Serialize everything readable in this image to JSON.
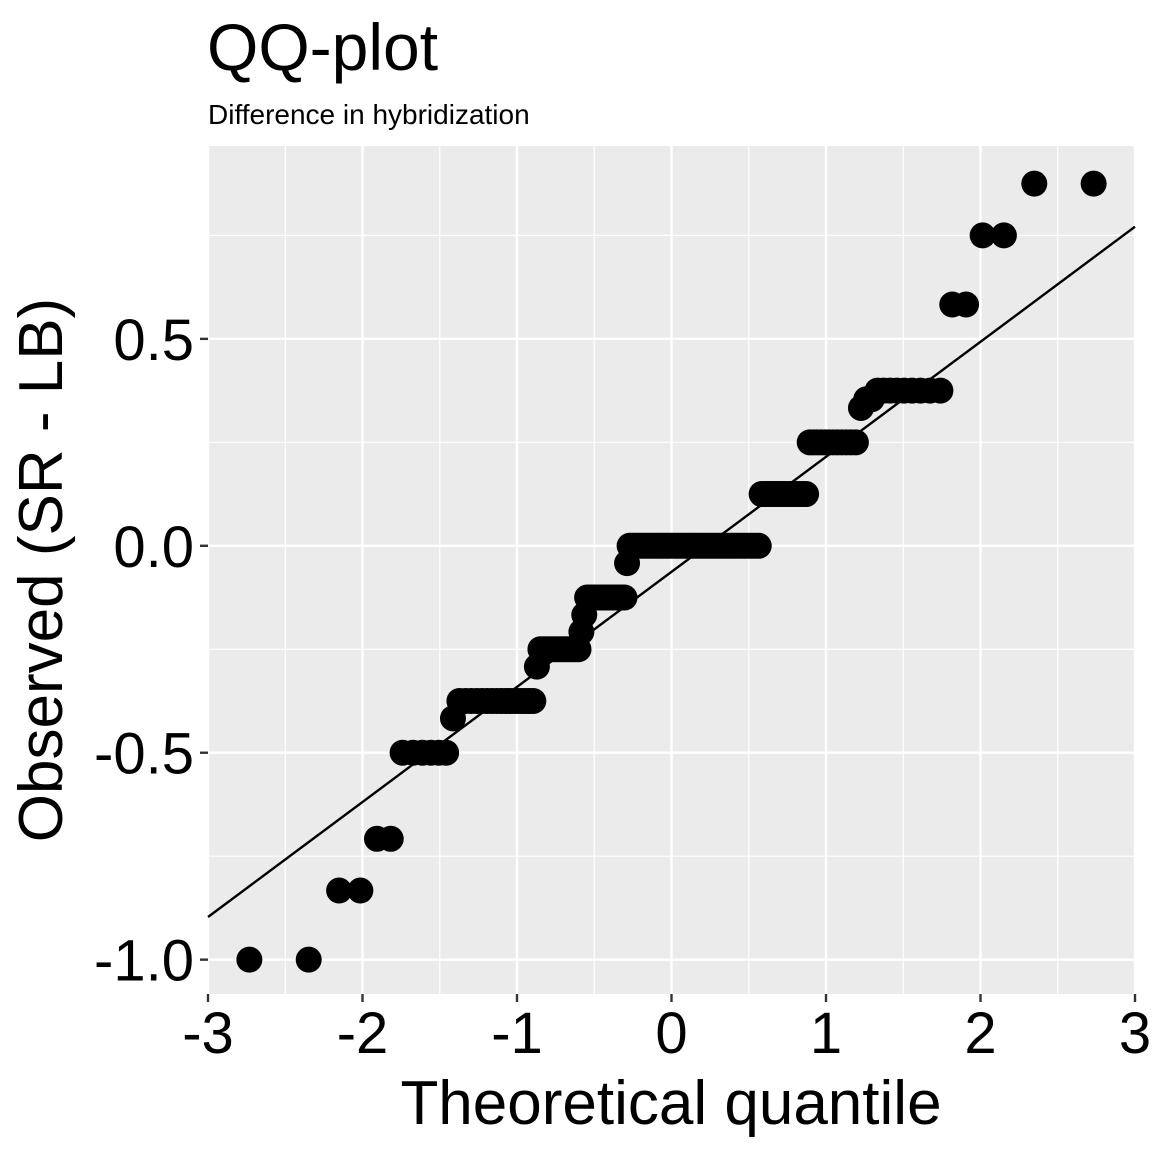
{
  "chart_data": {
    "type": "scatter",
    "title": "QQ-plot",
    "subtitle": "Difference in hybridization",
    "xlabel": "Theoretical quantile",
    "ylabel": "Observed (SR - LB)",
    "xlim": [
      -3,
      3
    ],
    "ylim": [
      -1.083,
      0.966
    ],
    "x_ticks": [
      -3,
      -2,
      -1,
      0,
      1,
      2,
      3
    ],
    "x_tick_labels": [
      "-3",
      "-2",
      "-1",
      "0",
      "1",
      "2",
      "3"
    ],
    "y_ticks": [
      -1.0,
      -0.5,
      0.0,
      0.5
    ],
    "y_tick_labels": [
      "-1.0",
      "-0.5",
      "0.0",
      "0.5"
    ],
    "grid": true,
    "background": "#EBEBEB",
    "point_color": "#000000",
    "observed_sorted": [
      {
        "value": -1.0,
        "count": 2
      },
      {
        "value": -0.833,
        "count": 2
      },
      {
        "value": -0.708,
        "count": 2
      },
      {
        "value": -0.5,
        "count": 6
      },
      {
        "value": -0.417,
        "count": 1
      },
      {
        "value": -0.375,
        "count": 17
      },
      {
        "value": -0.292,
        "count": 1
      },
      {
        "value": -0.25,
        "count": 13
      },
      {
        "value": -0.208,
        "count": 1
      },
      {
        "value": -0.167,
        "count": 1
      },
      {
        "value": -0.125,
        "count": 15
      },
      {
        "value": -0.042,
        "count": 1
      },
      {
        "value": 0.0,
        "count": 52
      },
      {
        "value": 0.125,
        "count": 15
      },
      {
        "value": 0.25,
        "count": 12
      },
      {
        "value": 0.333,
        "count": 1
      },
      {
        "value": 0.354,
        "count": 2
      },
      {
        "value": 0.375,
        "count": 9
      },
      {
        "value": 0.583,
        "count": 2
      },
      {
        "value": 0.75,
        "count": 2
      },
      {
        "value": 0.875,
        "count": 2
      }
    ],
    "reference_line": {
      "intercept": -0.063,
      "slope": 0.278
    }
  }
}
